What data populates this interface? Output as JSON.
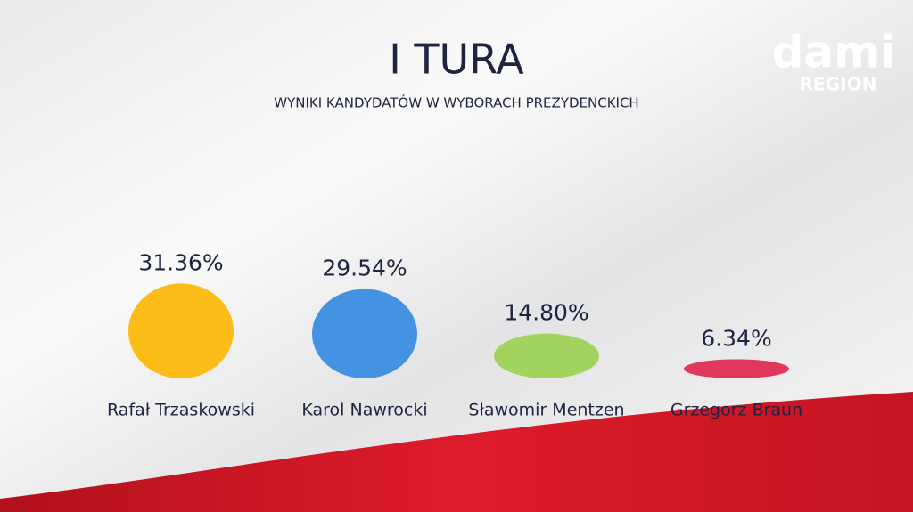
{
  "chart_data": {
    "type": "bar",
    "title": "I TURA",
    "subtitle": "WYNIKI KANDYDATÓW W WYBORACH PREZYDENCKICH",
    "categories": [
      "Rafał Trzaskowski",
      "Karol Nawrocki",
      "Sławomir Mentzen",
      "Grzegorz Braun"
    ],
    "values": [
      31.36,
      29.54,
      14.8,
      6.34
    ],
    "value_labels": [
      "31.36%",
      "29.54%",
      "14.80%",
      "6.34%"
    ],
    "colors": [
      "#fbbc17",
      "#4493e3",
      "#a2d35f",
      "#e0375b"
    ]
  },
  "logo": {
    "name": "dami",
    "subtitle": "REGION"
  }
}
